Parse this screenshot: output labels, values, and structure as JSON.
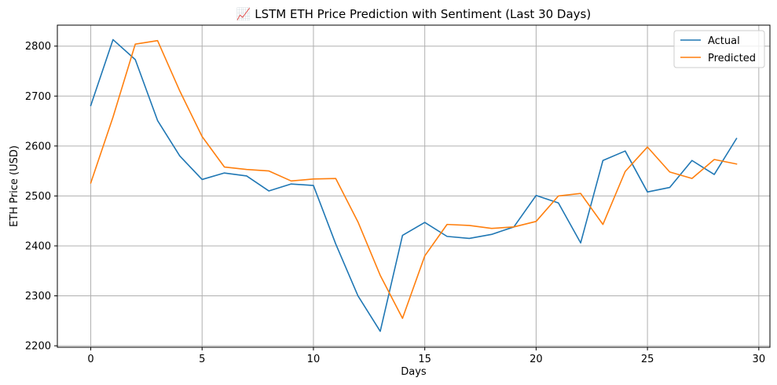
{
  "chart_data": {
    "type": "line",
    "title": "📈 LSTM ETH Price Prediction with Sentiment (Last 30 Days)",
    "xlabel": "Days",
    "ylabel": "ETH Price (USD)",
    "xlim": [
      -1.5,
      30.5
    ],
    "ylim": [
      2197,
      2842
    ],
    "xticks": [
      0,
      5,
      10,
      15,
      20,
      25,
      30
    ],
    "yticks": [
      2200,
      2300,
      2400,
      2500,
      2600,
      2700,
      2800
    ],
    "grid": true,
    "legend_position": "top-right",
    "x": [
      0,
      1,
      2,
      3,
      4,
      5,
      6,
      7,
      8,
      9,
      10,
      11,
      12,
      13,
      14,
      15,
      16,
      17,
      18,
      19,
      20,
      21,
      22,
      23,
      24,
      25,
      26,
      27,
      28,
      29
    ],
    "series": [
      {
        "name": "Actual",
        "color": "#1f77b4",
        "values": [
          2681,
          2813,
          2773,
          2651,
          2580,
          2533,
          2546,
          2540,
          2510,
          2524,
          2521,
          2404,
          2300,
          2229,
          2421,
          2447,
          2419,
          2415,
          2423,
          2438,
          2501,
          2486,
          2406,
          2571,
          2590,
          2508,
          2517,
          2571,
          2543,
          2615
        ]
      },
      {
        "name": "Predicted",
        "color": "#ff7f0e",
        "values": [
          2526,
          2658,
          2804,
          2811,
          2710,
          2619,
          2558,
          2553,
          2550,
          2530,
          2534,
          2535,
          2448,
          2341,
          2255,
          2380,
          2443,
          2441,
          2435,
          2438,
          2449,
          2500,
          2505,
          2443,
          2549,
          2598,
          2548,
          2535,
          2573,
          2564
        ]
      }
    ]
  }
}
